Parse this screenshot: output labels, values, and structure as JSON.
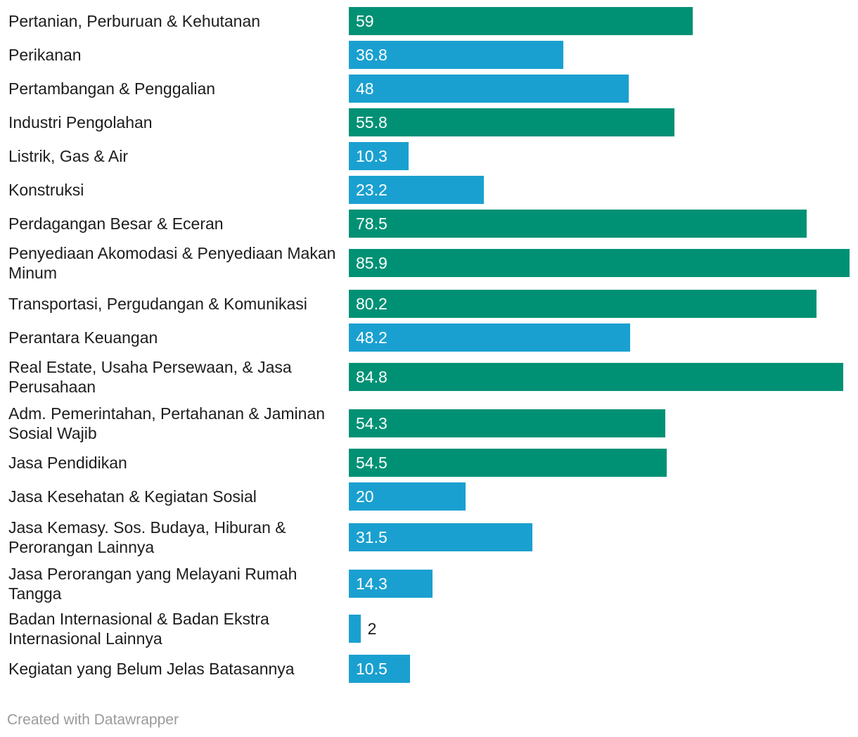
{
  "chart_data": {
    "type": "bar",
    "orientation": "horizontal",
    "categories": [
      "Pertanian, Perburuan & Kehutanan",
      "Perikanan",
      "Pertambangan & Penggalian",
      "Industri Pengolahan",
      "Listrik, Gas & Air",
      "Konstruksi",
      "Perdagangan Besar & Eceran",
      "Penyediaan Akomodasi & Penyediaan Makan Minum",
      "Transportasi, Pergudangan & Komunikasi",
      "Perantara Keuangan",
      "Real Estate, Usaha Persewaan, & Jasa Perusahaan",
      "Adm. Pemerintahan, Pertahanan & Jaminan Sosial Wajib",
      "Jasa Pendidikan",
      "Jasa Kesehatan & Kegiatan Sosial",
      "Jasa Kemasy. Sos. Budaya, Hiburan & Perorangan Lainnya",
      "Jasa Perorangan yang Melayani Rumah Tangga",
      "Badan Internasional & Badan Ekstra Internasional Lainnya",
      "Kegiatan yang Belum Jelas Batasannya"
    ],
    "values": [
      59,
      36.8,
      48,
      55.8,
      10.3,
      23.2,
      78.5,
      85.9,
      80.2,
      48.2,
      84.8,
      54.3,
      54.5,
      20,
      31.5,
      14.3,
      2,
      10.5
    ],
    "value_labels": [
      "59",
      "36.8",
      "48",
      "55.8",
      "10.3",
      "23.2",
      "78.5",
      "85.9",
      "80.2",
      "48.2",
      "84.8",
      "54.3",
      "54.5",
      "20",
      "31.5",
      "14.3",
      "2",
      "10.5"
    ],
    "color_groups": [
      "green",
      "blue",
      "blue",
      "green",
      "blue",
      "blue",
      "green",
      "green",
      "green",
      "blue",
      "green",
      "green",
      "green",
      "blue",
      "blue",
      "blue",
      "blue",
      "blue"
    ],
    "colors": {
      "green": "#009175",
      "blue": "#1aa0d0"
    },
    "xlim": [
      0,
      85.9
    ],
    "grid": false,
    "legend": "none"
  },
  "footer": {
    "credit": "Created with Datawrapper"
  }
}
